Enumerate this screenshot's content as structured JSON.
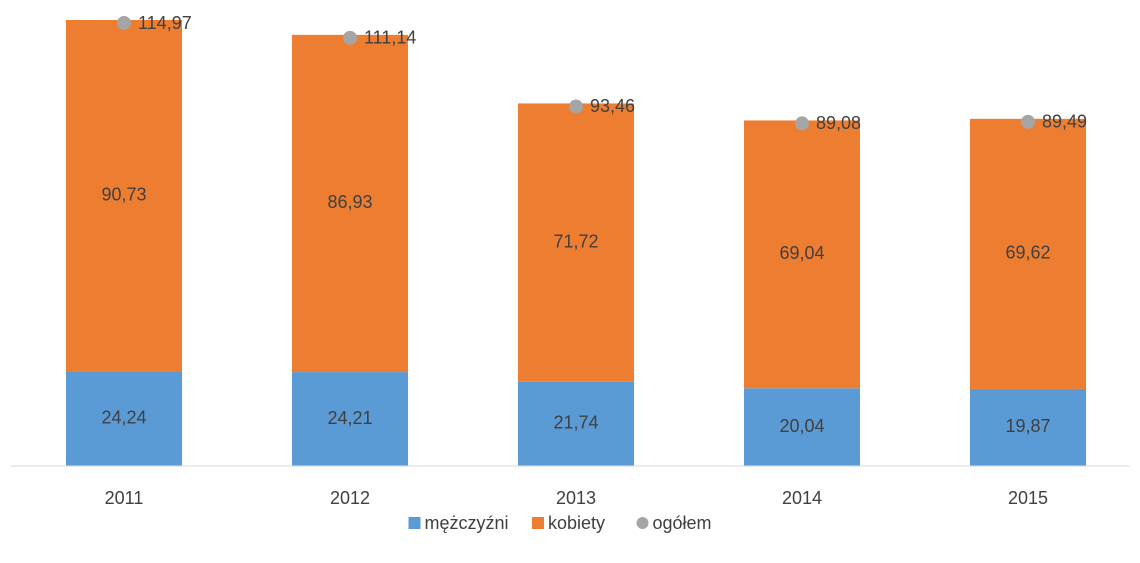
{
  "chart_data": {
    "type": "bar",
    "stacked": true,
    "categories": [
      "2011",
      "2012",
      "2013",
      "2014",
      "2015"
    ],
    "series": [
      {
        "name": "mężczyźni",
        "color": "#5b9bd5",
        "values": [
          24.24,
          24.21,
          21.74,
          20.04,
          19.87
        ],
        "value_labels": [
          "24,24",
          "24,21",
          "21,74",
          "20,04",
          "19,87"
        ]
      },
      {
        "name": "kobiety",
        "color": "#ed7d31",
        "values": [
          90.73,
          86.93,
          71.72,
          69.04,
          69.62
        ],
        "value_labels": [
          "90,73",
          "86,93",
          "71,72",
          "69,04",
          "69,62"
        ]
      },
      {
        "name": "ogółem",
        "color": "#a5a5a5",
        "type": "scatter",
        "values": [
          114.97,
          111.14,
          93.46,
          89.08,
          89.49
        ],
        "value_labels": [
          "114,97",
          "111,14",
          "93,46",
          "89,08",
          "89,49"
        ]
      }
    ],
    "legend": "bottom"
  }
}
